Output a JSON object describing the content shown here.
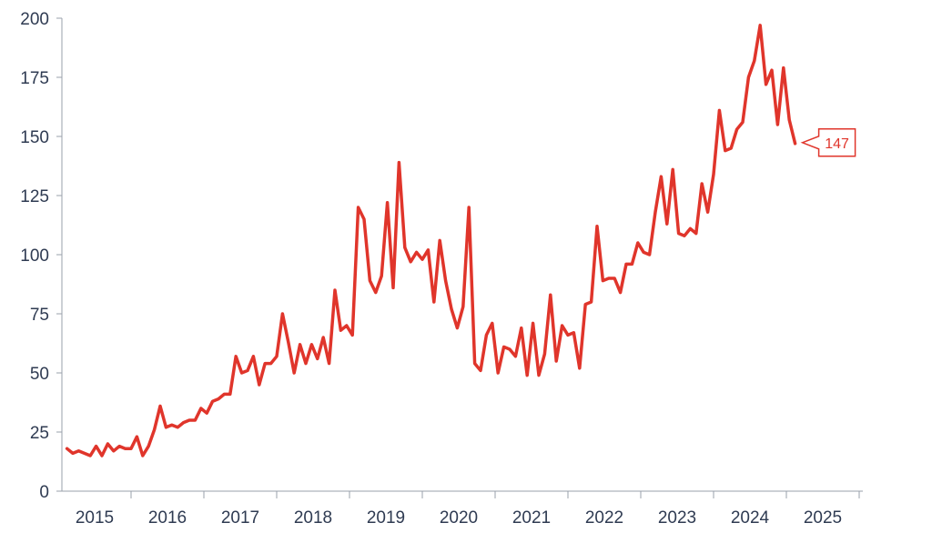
{
  "chart_data": {
    "type": "line",
    "title": "",
    "xlabel": "",
    "ylabel": "",
    "ylim": [
      0,
      200
    ],
    "xlim": [
      2014.55,
      2025.55
    ],
    "y_ticks": [
      0,
      25,
      50,
      75,
      100,
      125,
      150,
      175,
      200
    ],
    "x_ticks": [
      {
        "value": 2015.0,
        "label": "2015"
      },
      {
        "value": 2016.0,
        "label": "2016"
      },
      {
        "value": 2017.0,
        "label": "2017"
      },
      {
        "value": 2018.0,
        "label": "2018"
      },
      {
        "value": 2019.0,
        "label": "2019"
      },
      {
        "value": 2020.0,
        "label": "2020"
      },
      {
        "value": 2021.0,
        "label": "2021"
      },
      {
        "value": 2022.0,
        "label": "2022"
      },
      {
        "value": 2023.0,
        "label": "2023"
      },
      {
        "value": 2024.0,
        "label": "2024"
      },
      {
        "value": 2025.0,
        "label": "2025"
      }
    ],
    "grid": false,
    "legend": "none",
    "color": "#e0352b",
    "last_value_label": "147",
    "series": [
      {
        "values": [
          [
            2014.62,
            18
          ],
          [
            2014.7,
            16
          ],
          [
            2014.78,
            17
          ],
          [
            2014.86,
            16
          ],
          [
            2014.94,
            15
          ],
          [
            2015.02,
            19
          ],
          [
            2015.1,
            15
          ],
          [
            2015.18,
            20
          ],
          [
            2015.26,
            17
          ],
          [
            2015.34,
            19
          ],
          [
            2015.42,
            18
          ],
          [
            2015.5,
            18
          ],
          [
            2015.58,
            23
          ],
          [
            2015.66,
            15
          ],
          [
            2015.74,
            19
          ],
          [
            2015.82,
            26
          ],
          [
            2015.9,
            36
          ],
          [
            2015.98,
            27
          ],
          [
            2016.06,
            28
          ],
          [
            2016.14,
            27
          ],
          [
            2016.22,
            29
          ],
          [
            2016.3,
            30
          ],
          [
            2016.38,
            30
          ],
          [
            2016.46,
            35
          ],
          [
            2016.54,
            33
          ],
          [
            2016.62,
            38
          ],
          [
            2016.7,
            39
          ],
          [
            2016.78,
            41
          ],
          [
            2016.86,
            41
          ],
          [
            2016.94,
            57
          ],
          [
            2017.02,
            50
          ],
          [
            2017.1,
            51
          ],
          [
            2017.18,
            57
          ],
          [
            2017.26,
            45
          ],
          [
            2017.34,
            54
          ],
          [
            2017.42,
            54
          ],
          [
            2017.5,
            57
          ],
          [
            2017.58,
            75
          ],
          [
            2017.66,
            63
          ],
          [
            2017.74,
            50
          ],
          [
            2017.82,
            62
          ],
          [
            2017.9,
            54
          ],
          [
            2017.98,
            62
          ],
          [
            2018.06,
            56
          ],
          [
            2018.14,
            65
          ],
          [
            2018.22,
            54
          ],
          [
            2018.3,
            85
          ],
          [
            2018.38,
            68
          ],
          [
            2018.46,
            70
          ],
          [
            2018.54,
            66
          ],
          [
            2018.62,
            120
          ],
          [
            2018.7,
            115
          ],
          [
            2018.78,
            89
          ],
          [
            2018.86,
            84
          ],
          [
            2018.94,
            91
          ],
          [
            2019.02,
            122
          ],
          [
            2019.1,
            86
          ],
          [
            2019.18,
            139
          ],
          [
            2019.26,
            103
          ],
          [
            2019.34,
            97
          ],
          [
            2019.42,
            101
          ],
          [
            2019.5,
            98
          ],
          [
            2019.58,
            102
          ],
          [
            2019.66,
            80
          ],
          [
            2019.74,
            106
          ],
          [
            2019.82,
            89
          ],
          [
            2019.9,
            77
          ],
          [
            2019.98,
            69
          ],
          [
            2020.06,
            78
          ],
          [
            2020.14,
            120
          ],
          [
            2020.22,
            54
          ],
          [
            2020.3,
            51
          ],
          [
            2020.38,
            66
          ],
          [
            2020.46,
            71
          ],
          [
            2020.54,
            50
          ],
          [
            2020.62,
            61
          ],
          [
            2020.7,
            60
          ],
          [
            2020.78,
            57
          ],
          [
            2020.86,
            69
          ],
          [
            2020.94,
            49
          ],
          [
            2021.02,
            71
          ],
          [
            2021.1,
            49
          ],
          [
            2021.18,
            58
          ],
          [
            2021.26,
            83
          ],
          [
            2021.34,
            55
          ],
          [
            2021.42,
            70
          ],
          [
            2021.5,
            66
          ],
          [
            2021.58,
            67
          ],
          [
            2021.66,
            52
          ],
          [
            2021.74,
            79
          ],
          [
            2021.82,
            80
          ],
          [
            2021.9,
            112
          ],
          [
            2021.98,
            89
          ],
          [
            2022.06,
            90
          ],
          [
            2022.14,
            90
          ],
          [
            2022.22,
            84
          ],
          [
            2022.3,
            96
          ],
          [
            2022.38,
            96
          ],
          [
            2022.46,
            105
          ],
          [
            2022.54,
            101
          ],
          [
            2022.62,
            100
          ],
          [
            2022.7,
            118
          ],
          [
            2022.78,
            133
          ],
          [
            2022.86,
            113
          ],
          [
            2022.94,
            136
          ],
          [
            2023.02,
            109
          ],
          [
            2023.1,
            108
          ],
          [
            2023.18,
            111
          ],
          [
            2023.26,
            109
          ],
          [
            2023.34,
            130
          ],
          [
            2023.42,
            118
          ],
          [
            2023.5,
            134
          ],
          [
            2023.58,
            161
          ],
          [
            2023.66,
            144
          ],
          [
            2023.74,
            145
          ],
          [
            2023.82,
            153
          ],
          [
            2023.9,
            156
          ],
          [
            2023.98,
            175
          ],
          [
            2024.06,
            182
          ],
          [
            2024.14,
            197
          ],
          [
            2024.22,
            172
          ],
          [
            2024.3,
            178
          ],
          [
            2024.38,
            155
          ],
          [
            2024.46,
            179
          ],
          [
            2024.54,
            157
          ],
          [
            2024.62,
            147
          ]
        ]
      }
    ]
  }
}
